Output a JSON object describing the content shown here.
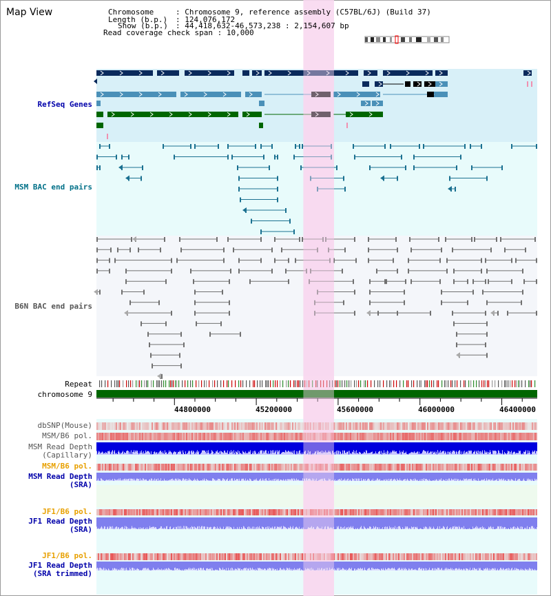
{
  "header": {
    "title": "Map View",
    "info": [
      {
        "key": "Chromosome",
        "sep": ": ",
        "value": "Chromosome 9, reference assembly (C57BL/6J) (Build 37)"
      },
      {
        "key": "Length (b.p.)",
        "sep": ": ",
        "value": "124,076,172"
      },
      {
        "key": "Show (b.p.)",
        "sep": ": ",
        "value": "44,418,632-46,573,238 : 2,154,607 bp"
      },
      {
        "key": "Read coverage check span",
        "sep": ": ",
        "value": "10,000"
      }
    ]
  },
  "tracks": {
    "refseq": "RefSeq Genes",
    "msm_bac": "MSM BAC end pairs",
    "b6n_bac": "B6N BAC end pairs",
    "repeat": "Repeat",
    "chromosome": "chromosome 9",
    "dbsnp": "dbSNP(Mouse)",
    "msm_b6_pol": "MSM/B6 pol.",
    "msm_depth_cap_1": "MSM Read Depth",
    "msm_depth_cap_2": "(Capillary)",
    "msm_b6_pol_sra": "MSM/B6 pol.",
    "msm_depth_sra_1": "MSM Read Depth",
    "msm_depth_sra_2": "(SRA)",
    "jf1_b6_pol": "JF1/B6 pol.",
    "jf1_depth_sra_1": "JF1 Read Depth",
    "jf1_depth_sra_2": "(SRA)",
    "jf1_b6_pol_trim": "JF1/B6 pol.",
    "jf1_depth_trim_1": "JF1 Read Depth",
    "jf1_depth_trim_2": "(SRA trimmed)"
  },
  "axis": {
    "range": [
      44418632,
      46573238
    ],
    "ticks": [
      "44800000",
      "45200000",
      "45600000",
      "46000000",
      "46400000"
    ]
  },
  "highlight_bp": [
    45430000,
    45580000
  ],
  "colors": {
    "refseq_bg": "#d8f0f8",
    "bac_bg": "#e8fbfb",
    "b6n_bg": "#f4f6fa",
    "highlight": "#f8d8f0",
    "chromosome": "#006600",
    "gene_navy": "#0a2a5c",
    "gene_blue": "#4a90b8",
    "gene_green": "#006600",
    "msm_pair": "#1a7090",
    "b6n_pair": "#707070",
    "depth_blue": "#0000dd",
    "depth_light": "#7f7fee",
    "pol_red": "#e84040"
  }
}
